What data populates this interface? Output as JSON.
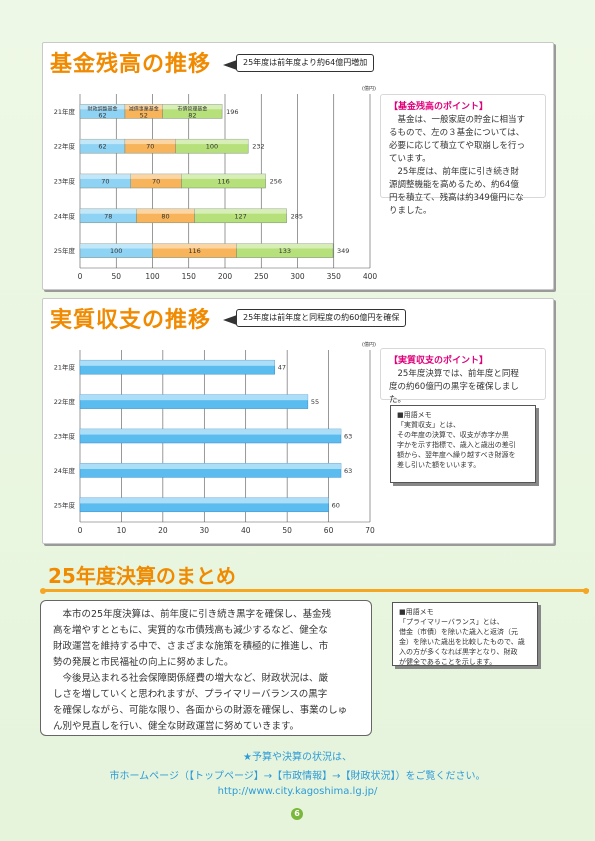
{
  "section1": {
    "title": "基金残高の推移",
    "callout": "25年度は前年度より約64億円増加",
    "unit": "(億円)",
    "point_title": "【基金残高のポイント】",
    "point_lines": [
      "基金は、一般家庭の貯金に相当す",
      "るもので、左の３基金については、",
      "必要に応じて積立てや取崩しを行っ",
      "ています。",
      "25年度は、前年度に引き続き財",
      "源調整機能を高めるため、約64億",
      "円を積立て、残高は約349億円にな",
      "りました。"
    ]
  },
  "section2": {
    "title": "実質収支の推移",
    "callout": "25年度は前年度と同程度の約60億円を確保",
    "unit": "(億円)",
    "point_title": "【実質収支のポイント】",
    "point_lines": [
      "25年度決算では、前年度と同程",
      "度の約60億円の黒字を確保しまし",
      "た。"
    ],
    "memo_heading": "■用語メモ",
    "memo_lines": [
      "「実質収支」とは、",
      "その年度の決算で、収支が赤字か黒",
      "字かを示す指標で、歳入と歳出の差引",
      "額から、翌年度へ繰り越すべき財源を",
      "差し引いた額をいいます。"
    ]
  },
  "summary": {
    "title": "25年度決算のまとめ",
    "para1": [
      "本市の25年度決算は、前年度に引き続き黒字を確保し、基金残",
      "高を増やすとともに、実質的な市債残高も減少するなど、健全な",
      "財政運営を維持する中で、さまざまな施策を積極的に推進し、市",
      "勢の発展と市民福祉の向上に努めました。"
    ],
    "para2": [
      "今後見込まれる社会保障関係経費の増大など、財政状況は、厳",
      "しさを増していくと思われますが、プライマリーバランスの黒字",
      "を確保しながら、可能な限り、各面からの財源を確保し、事業のしゅ",
      "ん別や見直しを行い、健全な財政運営に努めていきます。"
    ],
    "memo_heading": "■用語メモ",
    "memo_lines": [
      "「プライマリーバランス」とは、",
      "借金（市債）を除いた歳入と返済（元",
      "金）を除いた歳出を比較したもので、歳",
      "入の方が多くなれば黒字となり、財政",
      "が健全であることを示します。"
    ]
  },
  "footer": {
    "line1": "★予算や決算の状況は、",
    "line2": "市ホームページ（【トップページ】→【市政情報】→【財政状況】）をご覧ください。",
    "line3": "http://www.city.kagoshima.lg.jp/",
    "page": "6"
  },
  "chart_data": [
    {
      "type": "bar",
      "orientation": "horizontal",
      "stacked": true,
      "categories": [
        "21年度",
        "22年度",
        "23年度",
        "24年度",
        "25年度"
      ],
      "series": [
        {
          "name": "財政調整基金",
          "values": [
            62,
            62,
            70,
            78,
            100
          ],
          "color": "#8fd3f4"
        },
        {
          "name": "減債事業基金",
          "values": [
            52,
            70,
            70,
            80,
            116
          ],
          "color": "#f7b45a"
        },
        {
          "name": "市債管理基金",
          "values": [
            82,
            100,
            116,
            127,
            133
          ],
          "color": "#b6e07a"
        }
      ],
      "totals": [
        196,
        232,
        256,
        285,
        349
      ],
      "xlim": [
        0,
        400
      ],
      "xticks": [
        0,
        50,
        100,
        150,
        200,
        250,
        300,
        350,
        400
      ],
      "unit": "(億円)"
    },
    {
      "type": "bar",
      "orientation": "horizontal",
      "categories": [
        "21年度",
        "22年度",
        "23年度",
        "24年度",
        "25年度"
      ],
      "values": [
        47,
        55,
        63,
        63,
        60
      ],
      "color": "#5bbcf0",
      "xlim": [
        0,
        70
      ],
      "xticks": [
        0,
        10,
        20,
        30,
        40,
        50,
        60,
        70
      ],
      "unit": "(億円)"
    }
  ]
}
